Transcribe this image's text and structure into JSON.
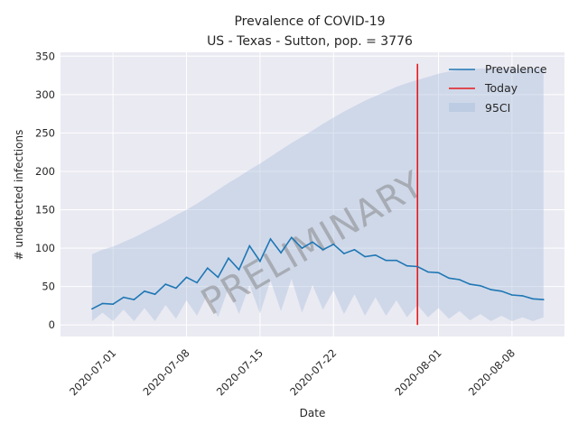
{
  "chart_data": {
    "type": "line",
    "title": "Prevalence of COVID-19",
    "subtitle": "US - Texas - Sutton, pop. = 3776",
    "xlabel": "Date",
    "ylabel": "# undetected infections",
    "watermark": "PRELIMINARY",
    "xlim": [
      "2020-06-26",
      "2020-08-13"
    ],
    "ylim": [
      -15,
      355
    ],
    "x_ticks": [
      "2020-07-01",
      "2020-07-08",
      "2020-07-15",
      "2020-07-22",
      "2020-08-01",
      "2020-08-08"
    ],
    "y_ticks": [
      0,
      50,
      100,
      150,
      200,
      250,
      300,
      350
    ],
    "grid": true,
    "legend_position": "top-right",
    "today": "2020-07-30",
    "today_range": [
      0,
      340
    ],
    "x": [
      "2020-06-29",
      "2020-06-30",
      "2020-07-01",
      "2020-07-02",
      "2020-07-03",
      "2020-07-04",
      "2020-07-05",
      "2020-07-06",
      "2020-07-07",
      "2020-07-08",
      "2020-07-09",
      "2020-07-10",
      "2020-07-11",
      "2020-07-12",
      "2020-07-13",
      "2020-07-14",
      "2020-07-15",
      "2020-07-16",
      "2020-07-17",
      "2020-07-18",
      "2020-07-19",
      "2020-07-20",
      "2020-07-21",
      "2020-07-22",
      "2020-07-23",
      "2020-07-24",
      "2020-07-25",
      "2020-07-26",
      "2020-07-27",
      "2020-07-28",
      "2020-07-29",
      "2020-07-30",
      "2020-07-31",
      "2020-08-01",
      "2020-08-02",
      "2020-08-03",
      "2020-08-04",
      "2020-08-05",
      "2020-08-06",
      "2020-08-07",
      "2020-08-08",
      "2020-08-09",
      "2020-08-10",
      "2020-08-11"
    ],
    "series": [
      {
        "name": "Prevalence",
        "color": "#1f77b4",
        "values": [
          21,
          28,
          27,
          36,
          33,
          44,
          40,
          53,
          48,
          62,
          55,
          74,
          62,
          87,
          72,
          103,
          83,
          112,
          94,
          114,
          100,
          108,
          98,
          105,
          93,
          98,
          89,
          91,
          84,
          84,
          77,
          76,
          69,
          68,
          61,
          59,
          53,
          51,
          46,
          44,
          39,
          38,
          34,
          33
        ]
      }
    ],
    "ci": {
      "name": "95CI",
      "color": "#b0c4de",
      "lower": [
        5,
        16,
        5,
        20,
        5,
        22,
        5,
        26,
        8,
        32,
        12,
        40,
        10,
        48,
        14,
        52,
        15,
        58,
        18,
        60,
        16,
        52,
        20,
        45,
        14,
        40,
        12,
        36,
        12,
        32,
        10,
        26,
        10,
        22,
        8,
        18,
        6,
        14,
        5,
        12,
        5,
        10,
        5,
        10
      ],
      "upper": [
        92,
        98,
        102,
        108,
        114,
        121,
        128,
        135,
        143,
        150,
        158,
        167,
        176,
        185,
        193,
        202,
        210,
        219,
        228,
        237,
        245,
        253,
        262,
        270,
        278,
        285,
        292,
        298,
        304,
        310,
        315,
        319,
        323,
        327,
        330,
        332,
        333,
        334,
        334,
        334,
        334,
        334,
        334,
        334
      ]
    },
    "today_series": {
      "name": "Today",
      "color": "#e41a1c"
    }
  }
}
